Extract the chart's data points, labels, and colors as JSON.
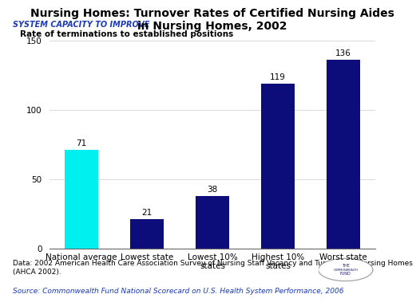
{
  "title": "Nursing Homes: Turnover Rates of Certified Nursing Aides\nin Nursing Homes, 2002",
  "ylabel_label": "Rate of terminations to established positions",
  "categories": [
    "National average",
    "Lowest state",
    "Lowest 10%\nstates",
    "Highest 10%\nstates",
    "Worst state"
  ],
  "values": [
    71,
    21,
    38,
    119,
    136
  ],
  "bar_colors": [
    "#00EFEF",
    "#0C0C7A",
    "#0C0C7A",
    "#0C0C7A",
    "#0C0C7A"
  ],
  "ylim": [
    0,
    150
  ],
  "yticks": [
    0,
    50,
    100,
    150
  ],
  "header_text": "SYSTEM CAPACITY TO IMPROVE",
  "header_bg": "#9ECFEE",
  "header_text_color": "#1A3BB5",
  "footer_data_text": "Data: 2002 American Health Care Association Survey of Nursing Staff Vacancy and Turnover in Nursing Homes\n(AHCA 2002).",
  "footer_source_text": "Source: Commonwealth Fund National Scorecard on U.S. Health System Performance, 2006",
  "footer_data_bg": "#FFFFFF",
  "footer_source_bg": "#9ECFEE",
  "footer_source_color": "#1A3BB5",
  "plot_bg": "#FFFFFF",
  "fig_bg": "#FFFFFF",
  "title_fontsize": 10,
  "label_fontsize": 7.5,
  "value_fontsize": 7.5,
  "footer_fontsize": 6.5,
  "ylabel_fontsize": 7.5
}
